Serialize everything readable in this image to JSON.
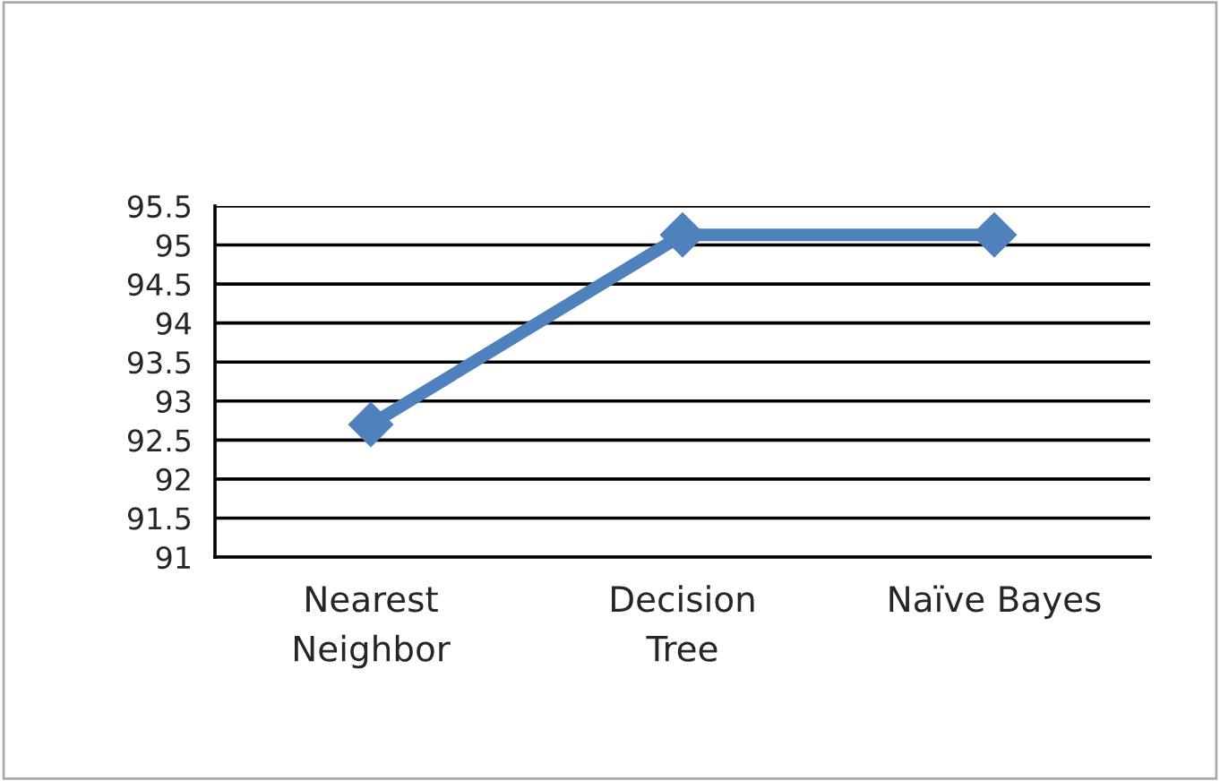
{
  "chart_data": {
    "type": "line",
    "categories": [
      "Nearest\nNeighbor",
      "Decision\nTree",
      "Naïve Bayes"
    ],
    "series": [
      {
        "color": "#4f81bd",
        "values": [
          92.7,
          95.13,
          95.13
        ]
      }
    ],
    "ylim": [
      91,
      95.5
    ],
    "yticks": [
      91,
      91.5,
      92,
      92.5,
      93,
      93.5,
      94,
      94.5,
      95,
      95.5
    ],
    "grid": "y",
    "marker": "diamond",
    "line_style": "solid",
    "legend": false
  }
}
